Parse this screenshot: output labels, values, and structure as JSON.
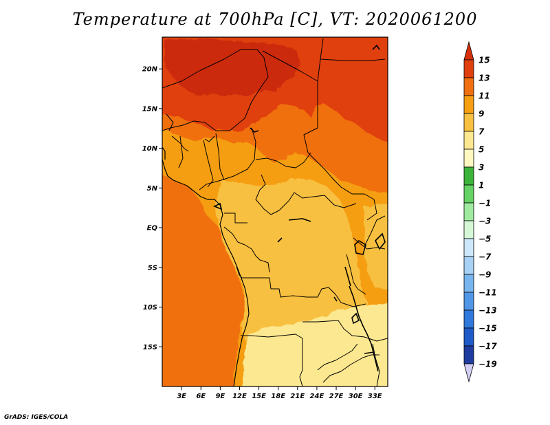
{
  "map": {
    "title": "Temperature at 700hPa [C], VT: 2020061200",
    "credit": "GrADS: IGES/COLA",
    "lon_range": [
      0,
      35
    ],
    "lat_range": [
      -20,
      24
    ],
    "lat_ticks": [
      {
        "label": "20N",
        "value": 20
      },
      {
        "label": "15N",
        "value": 15
      },
      {
        "label": "10N",
        "value": 10
      },
      {
        "label": "5N",
        "value": 5
      },
      {
        "label": "EQ",
        "value": 0
      },
      {
        "label": "5S",
        "value": -5
      },
      {
        "label": "10S",
        "value": -10
      },
      {
        "label": "15S",
        "value": -15
      }
    ],
    "lon_ticks": [
      {
        "label": "3E",
        "value": 3
      },
      {
        "label": "6E",
        "value": 6
      },
      {
        "label": "9E",
        "value": 9
      },
      {
        "label": "12E",
        "value": 12
      },
      {
        "label": "15E",
        "value": 15
      },
      {
        "label": "18E",
        "value": 18
      },
      {
        "label": "21E",
        "value": 21
      },
      {
        "label": "24E",
        "value": 24
      },
      {
        "label": "27E",
        "value": 27
      },
      {
        "label": "30E",
        "value": 30
      },
      {
        "label": "33E",
        "value": 33
      }
    ],
    "colors": {
      "t15": "#cc2a0e",
      "t13": "#e0400e",
      "t11": "#f07010",
      "t9": "#f59e12",
      "t7": "#f8c040",
      "t5": "#fce890",
      "border": "#000000"
    }
  },
  "colorbar": {
    "labels": [
      "15",
      "13",
      "11",
      "9",
      "7",
      "5",
      "3",
      "1",
      "−1",
      "−3",
      "−5",
      "−7",
      "−9",
      "−11",
      "−13",
      "−15",
      "−17",
      "−19"
    ],
    "colors": [
      "#e0400e",
      "#f07010",
      "#f59e12",
      "#f8c040",
      "#fce890",
      "#fff8c0",
      "#3cb43c",
      "#64d264",
      "#a0eaa0",
      "#d6f7d6",
      "#cde8fa",
      "#a8d2f5",
      "#78b4ee",
      "#5096e6",
      "#2f78dc",
      "#1e5ac8",
      "#1e3ca0",
      "#14147a"
    ],
    "top_color": "#d7300c",
    "bottom_color": "#d2d0f5"
  }
}
